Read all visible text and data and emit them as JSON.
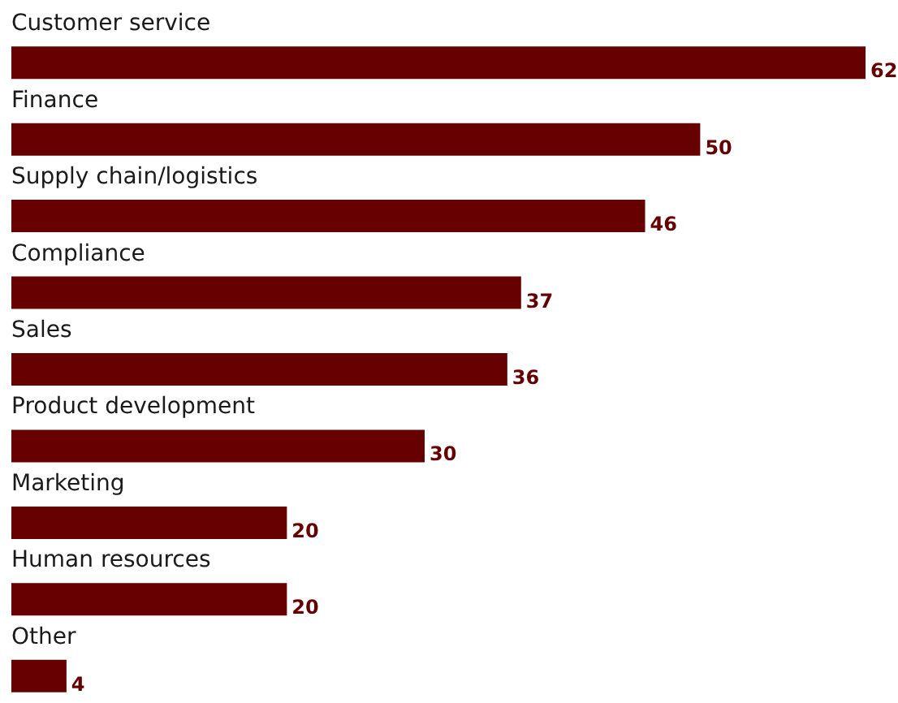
{
  "chart_data": {
    "type": "bar",
    "orientation": "horizontal",
    "categories": [
      "Customer service",
      "Finance",
      "Supply chain/logistics",
      "Compliance",
      "Sales",
      "Product development",
      "Marketing",
      "Human resources",
      "Other"
    ],
    "values": [
      62,
      50,
      46,
      37,
      36,
      30,
      20,
      20,
      4
    ],
    "color": "#670000",
    "data_labels": true
  }
}
